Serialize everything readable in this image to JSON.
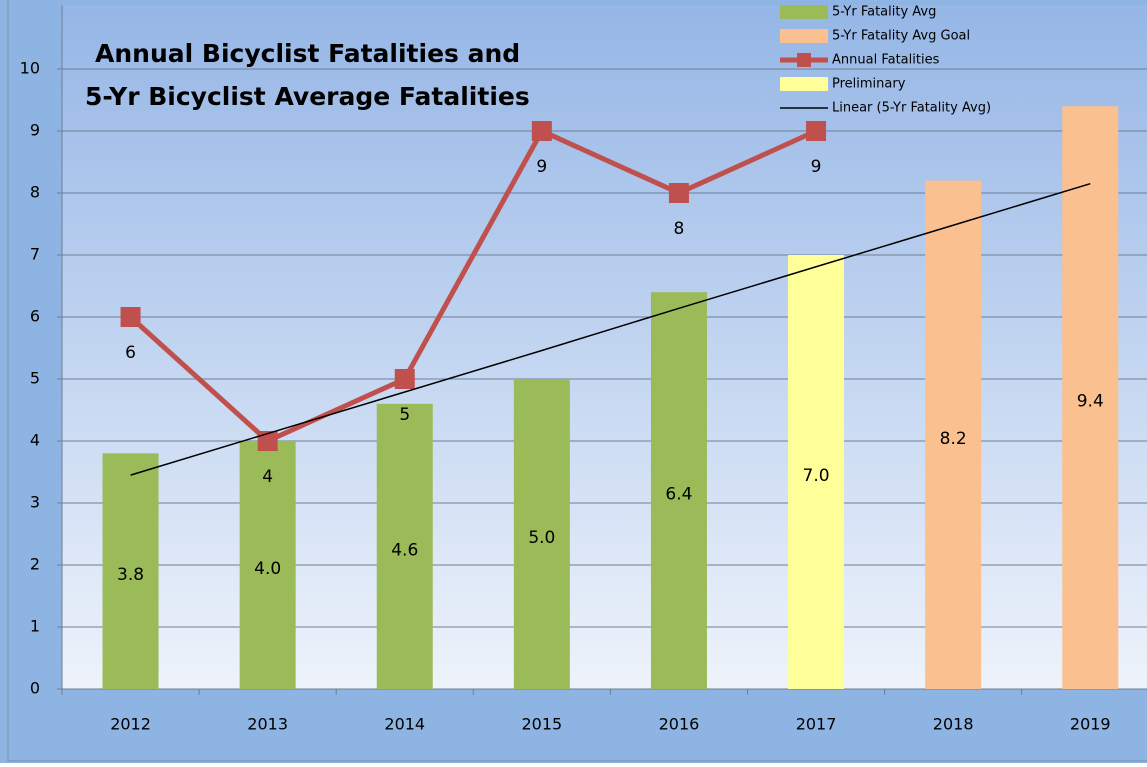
{
  "chart_data": {
    "type": "bar",
    "title": [
      "Annual Bicyclist Fatalities and",
      "5-Yr Bicyclist Average Fatalities"
    ],
    "categories": [
      "2012",
      "2013",
      "2014",
      "2015",
      "2016",
      "2017",
      "2018",
      "2019"
    ],
    "series": [
      {
        "name": "5-Yr Fatality Avg",
        "type": "bar",
        "color": "#9bbb59",
        "values": [
          3.8,
          4.0,
          4.6,
          5.0,
          6.4,
          null,
          null,
          null
        ],
        "value_labels": [
          "3.8",
          "4.0",
          "4.6",
          "5.0",
          "6.4",
          null,
          null,
          null
        ]
      },
      {
        "name": "5-Yr Fatality Avg Goal",
        "type": "bar",
        "color": "#fac090",
        "values": [
          null,
          null,
          null,
          null,
          null,
          null,
          8.2,
          9.4
        ],
        "value_labels": [
          null,
          null,
          null,
          null,
          null,
          null,
          "8.2",
          "9.4"
        ]
      },
      {
        "name": "Annual Fatalities",
        "type": "line",
        "color": "#c0504d",
        "values": [
          6,
          4,
          5,
          9,
          8,
          9,
          null,
          null
        ],
        "value_labels": [
          "6",
          "4",
          "5",
          "9",
          "8",
          "9",
          null,
          null
        ]
      },
      {
        "name": "Preliminary",
        "type": "bar",
        "color": "#ffff99",
        "values": [
          null,
          null,
          null,
          null,
          null,
          7.0,
          null,
          null
        ],
        "value_labels": [
          null,
          null,
          null,
          null,
          null,
          "7.0",
          null,
          null
        ]
      },
      {
        "name": "Linear (5-Yr Fatality Avg)",
        "type": "trend",
        "color": "#000000",
        "values": [
          3.45,
          4.12,
          4.79,
          5.46,
          6.14,
          6.81,
          7.48,
          8.15
        ]
      }
    ],
    "ylim": [
      0,
      10
    ],
    "yticks": [
      0,
      1,
      2,
      3,
      4,
      5,
      6,
      7,
      8,
      9,
      10
    ],
    "grid": true,
    "legend": "top-right"
  }
}
